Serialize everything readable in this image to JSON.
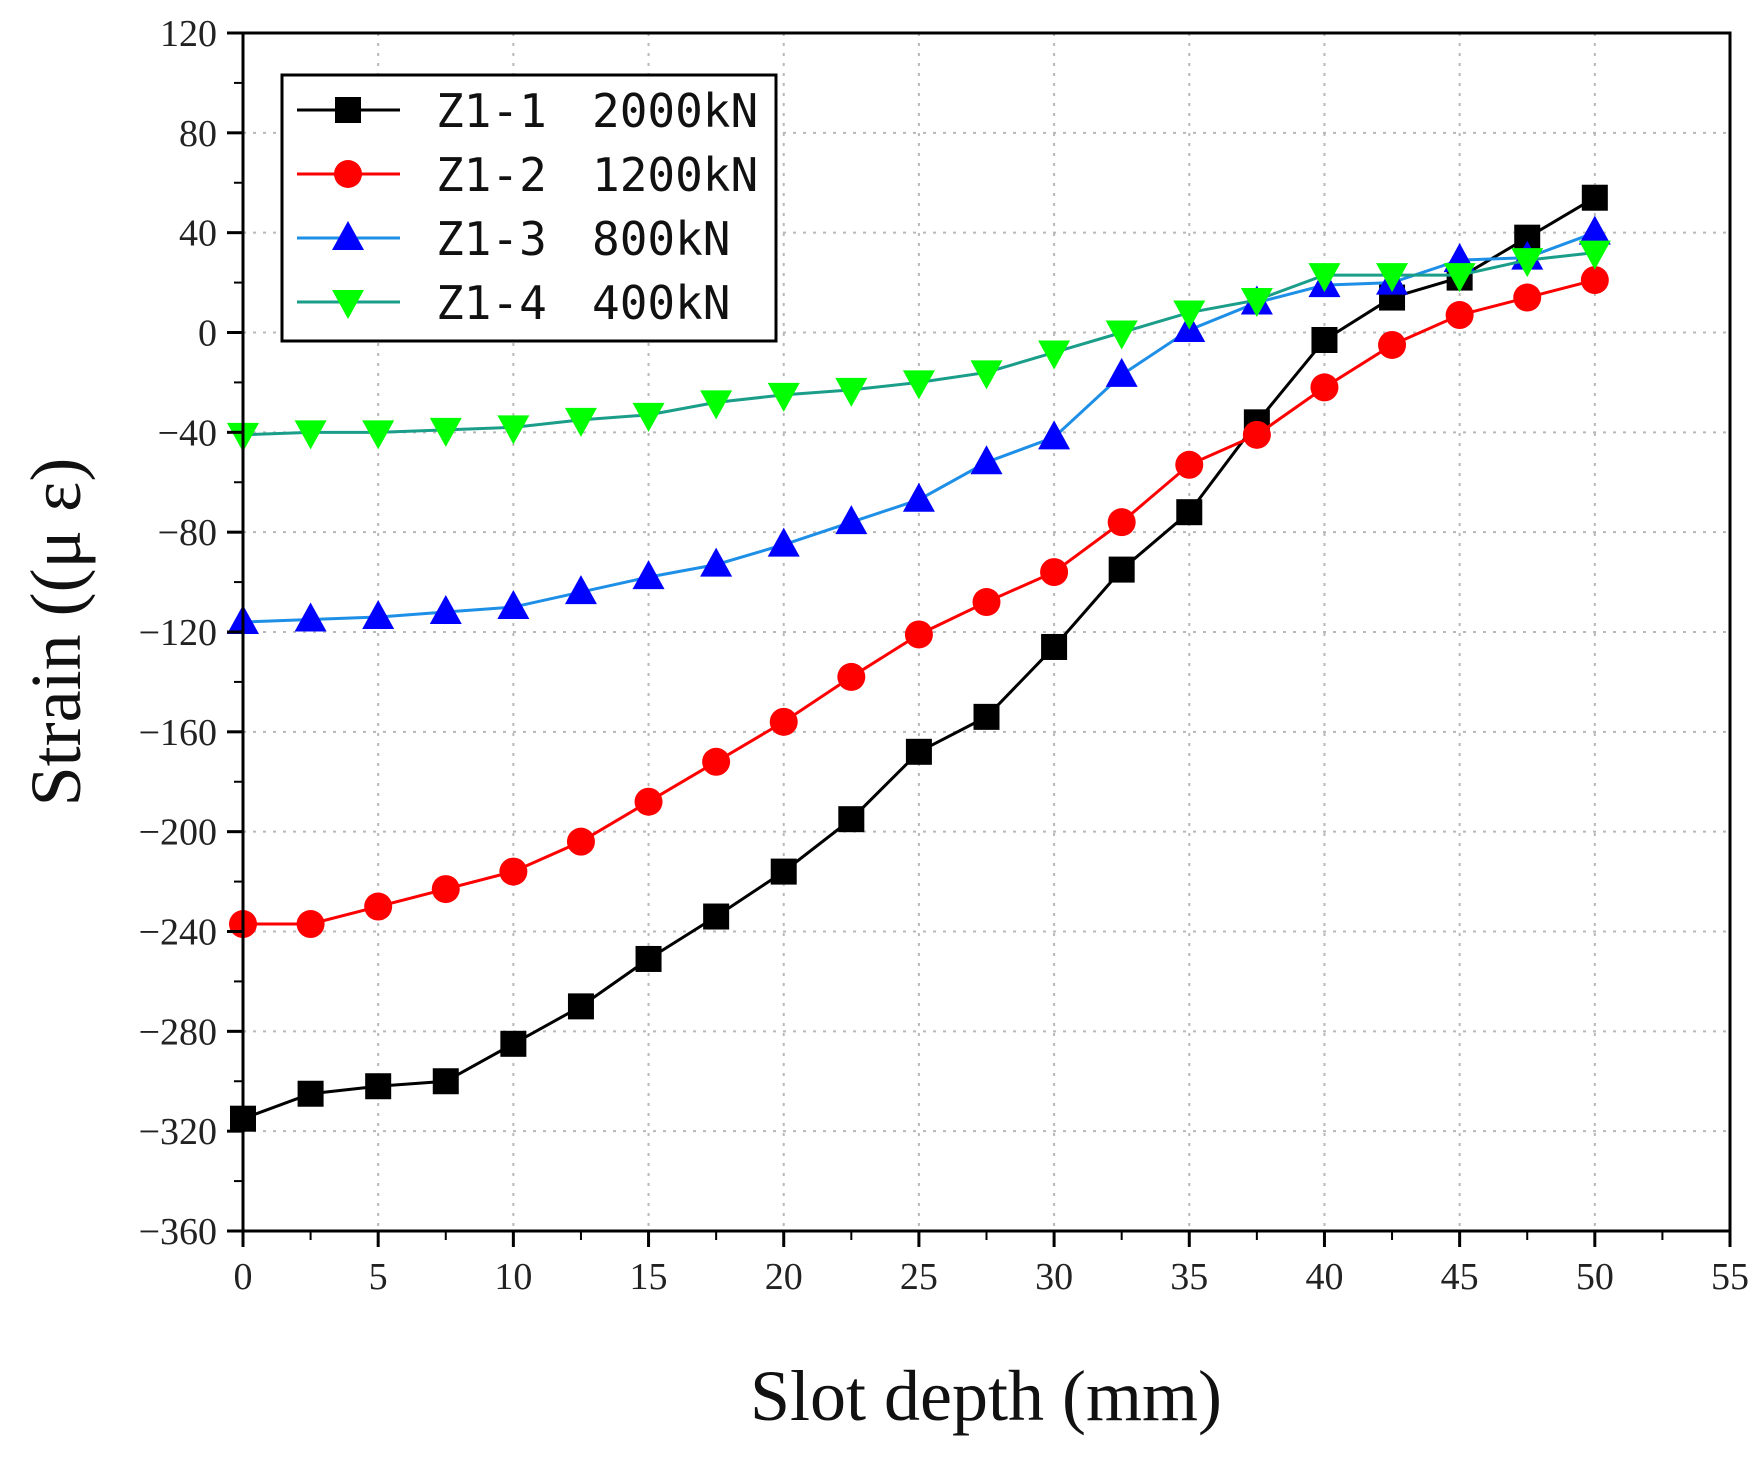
{
  "chart_data": {
    "type": "line",
    "title": "",
    "xlabel": "Slot depth (mm)",
    "ylabel": "Strain ((μ ε)",
    "xlim": [
      0,
      55
    ],
    "ylim": [
      -360,
      120
    ],
    "x_ticks": [
      0,
      5,
      10,
      15,
      20,
      25,
      30,
      35,
      40,
      45,
      50,
      55
    ],
    "y_ticks": [
      120,
      80,
      40,
      0,
      -40,
      -80,
      -120,
      -160,
      -200,
      -240,
      -280,
      -320,
      -360
    ],
    "x_tick_labels": [
      "0",
      "5",
      "10",
      "15",
      "20",
      "25",
      "30",
      "35",
      "40",
      "45",
      "50",
      "55"
    ],
    "y_tick_labels": [
      "120",
      "80",
      "40",
      "0",
      "−40",
      "−80",
      "−120",
      "−160",
      "−200",
      "−240",
      "−280",
      "−320",
      "−360"
    ],
    "grid": true,
    "legend_position": "top-left",
    "x": [
      0,
      2.5,
      5,
      7.5,
      10,
      12.5,
      15,
      17.5,
      20,
      22.5,
      25,
      27.5,
      30,
      32.5,
      35,
      37.5,
      40,
      42.5,
      45,
      47.5,
      50
    ],
    "series": [
      {
        "name": "Z1-1",
        "load": "2000kN",
        "marker": "square",
        "color": "#000000",
        "values": [
          -315,
          -305,
          -302,
          -300,
          -285,
          -270,
          -251,
          -234,
          -216,
          -195,
          -168,
          -154,
          -126,
          -95,
          -72,
          -36,
          -3,
          14,
          22,
          38,
          54
        ]
      },
      {
        "name": "Z1-2",
        "load": "1200kN",
        "marker": "circle",
        "color": "#ff0000",
        "values": [
          -237,
          -237,
          -230,
          -223,
          -216,
          -204,
          -188,
          -172,
          -156,
          -138,
          -121,
          -108,
          -96,
          -76,
          -53,
          -41,
          -22,
          -5,
          7,
          14,
          21
        ]
      },
      {
        "name": "Z1-3",
        "load": "800kN",
        "marker": "triangle-up",
        "color": "#0000ff",
        "line_color": "#1e8fe6",
        "values": [
          -116,
          -115,
          -114,
          -112,
          -110,
          -104,
          -98,
          -93,
          -85,
          -76,
          -67,
          -52,
          -42,
          -17,
          1,
          12,
          19,
          20,
          29,
          30,
          40
        ]
      },
      {
        "name": "Z1-4",
        "load": "400kN",
        "marker": "triangle-down",
        "color": "#00ff00",
        "line_color": "#1a9e8a",
        "values": [
          -41,
          -40,
          -40,
          -39,
          -38,
          -35,
          -33,
          -28,
          -25,
          -23,
          -20,
          -16,
          -8,
          0,
          8,
          13,
          23,
          23,
          23,
          29,
          32
        ]
      }
    ]
  }
}
